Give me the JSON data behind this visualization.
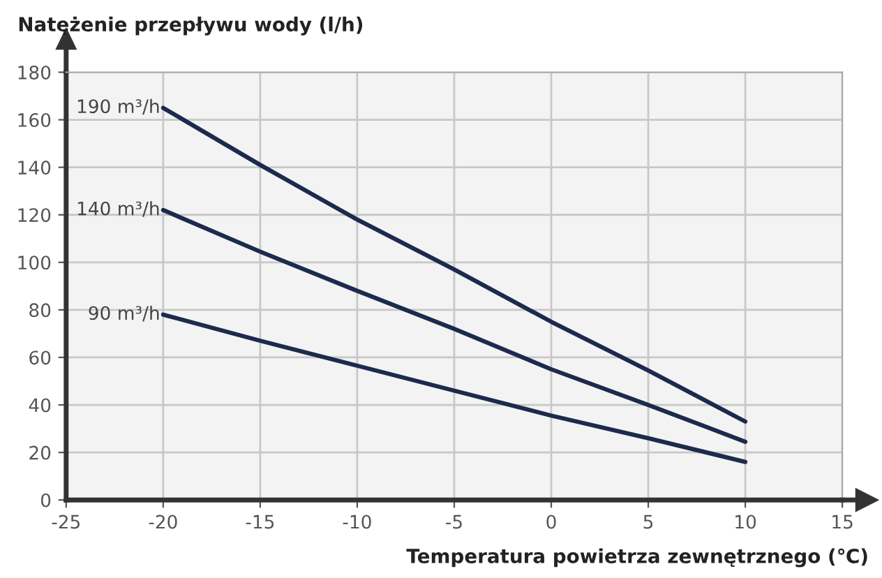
{
  "chart_data": {
    "type": "line",
    "xlabel": "Temperatura powietrza zewnętrznego (℃)",
    "ylabel": "Natężenie przepływu wody (l/h)",
    "x": [
      -20,
      -15,
      -10,
      -5,
      0,
      5,
      10
    ],
    "series": [
      {
        "name": "190 m³/h",
        "color": "#1c2a4d",
        "values": [
          165,
          141,
          118,
          97,
          75,
          54.5,
          33
        ]
      },
      {
        "name": "140 m³/h",
        "color": "#1c2a4d",
        "values": [
          122,
          104.5,
          88,
          72,
          55,
          40,
          24.5
        ]
      },
      {
        "name": "90 m³/h",
        "color": "#1c2a4d",
        "values": [
          78,
          67,
          56.5,
          46,
          35.5,
          26,
          16
        ]
      }
    ],
    "xlim": [
      -25,
      15
    ],
    "ylim": [
      0,
      180
    ],
    "xticks": [
      -25,
      -20,
      -15,
      -10,
      -5,
      0,
      5,
      10,
      15
    ],
    "yticks": [
      0,
      20,
      40,
      60,
      80,
      100,
      120,
      140,
      160,
      180
    ],
    "grid": true,
    "marker": "none",
    "line_style": "solid",
    "legend": false
  }
}
